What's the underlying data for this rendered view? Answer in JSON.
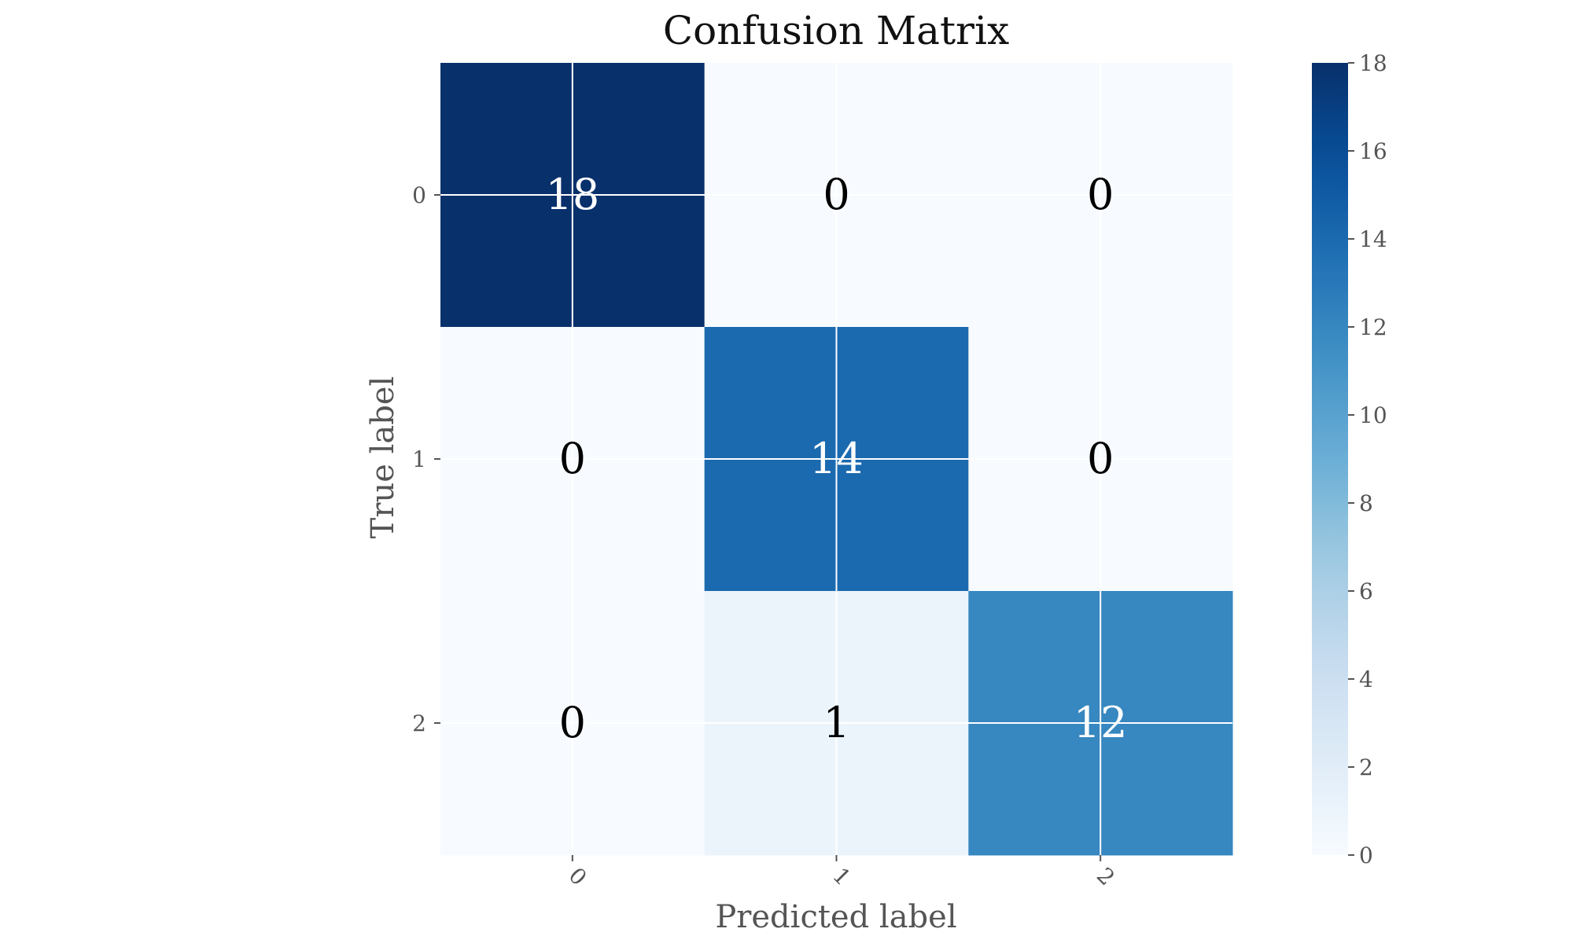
{
  "chart_data": {
    "type": "heatmap",
    "title": "Confusion Matrix",
    "xlabel": "Predicted label",
    "ylabel": "True label",
    "x_categories": [
      "0",
      "1",
      "2"
    ],
    "y_categories": [
      "0",
      "1",
      "2"
    ],
    "matrix": [
      [
        18,
        0,
        0
      ],
      [
        0,
        14,
        0
      ],
      [
        0,
        1,
        12
      ]
    ],
    "cell_labels": [
      [
        "18",
        "0",
        "0"
      ],
      [
        "0",
        "14",
        "0"
      ],
      [
        "0",
        "1",
        "12"
      ]
    ],
    "colormap": "Blues",
    "colorbar": {
      "range": [
        0,
        18
      ],
      "ticks": [
        0,
        2,
        4,
        6,
        8,
        10,
        12,
        14,
        16,
        18
      ],
      "tick_labels": [
        "0",
        "2",
        "4",
        "6",
        "8",
        "10",
        "12",
        "14",
        "16",
        "18"
      ]
    },
    "grid": true,
    "text_colors": {
      "dark_cell": "#ffffff",
      "light_cell": "#000000"
    }
  }
}
